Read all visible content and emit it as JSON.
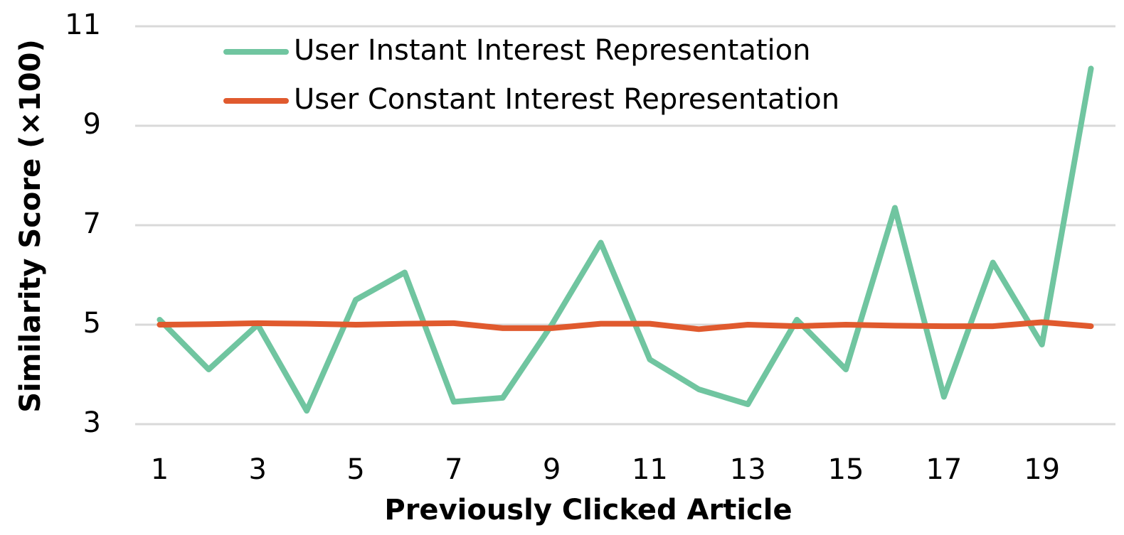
{
  "chart_data": {
    "type": "line",
    "x_label": "Previously Clicked Article",
    "y_label": "Similarity Score (×100)",
    "x": [
      1,
      2,
      3,
      4,
      5,
      6,
      7,
      8,
      9,
      10,
      11,
      12,
      13,
      14,
      15,
      16,
      17,
      18,
      19,
      20
    ],
    "xlim": [
      0.5,
      20.5
    ],
    "xticks": [
      1,
      3,
      5,
      7,
      9,
      11,
      13,
      15,
      17,
      19
    ],
    "ylim": [
      3,
      11
    ],
    "yticks": [
      3,
      5,
      7,
      9,
      11
    ],
    "grid": true,
    "legend": "upper left",
    "series": [
      {
        "name": "User Instant Interest Representation",
        "color": "#70c5a0",
        "values": [
          5.1,
          4.1,
          5.0,
          3.27,
          5.5,
          6.05,
          3.45,
          3.53,
          5.0,
          6.65,
          4.3,
          3.7,
          3.4,
          5.1,
          4.1,
          7.35,
          3.55,
          6.25,
          4.6,
          10.15
        ]
      },
      {
        "name": "User Constant Interest Representation",
        "color": "#e05a2e",
        "values": [
          5.0,
          5.01,
          5.03,
          5.02,
          5.0,
          5.02,
          5.03,
          4.93,
          4.93,
          5.02,
          5.02,
          4.91,
          5.0,
          4.97,
          5.0,
          4.98,
          4.97,
          4.97,
          5.05,
          4.97
        ]
      }
    ]
  }
}
